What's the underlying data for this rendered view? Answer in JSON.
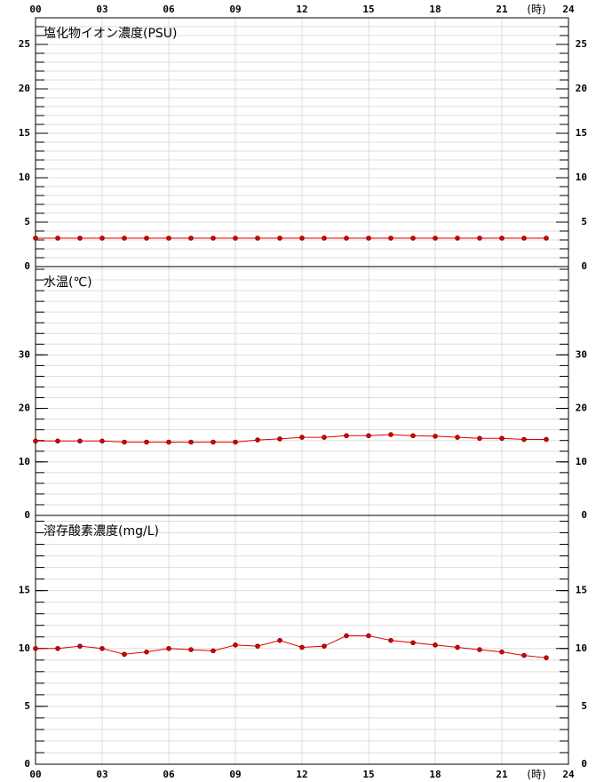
{
  "x_axis": {
    "xlim": [
      0,
      24
    ],
    "unit_label": "(時)",
    "xticks": [
      {
        "value": 0,
        "label": "00"
      },
      {
        "value": 3,
        "label": "03"
      },
      {
        "value": 6,
        "label": "06"
      },
      {
        "value": 9,
        "label": "09"
      },
      12,
      15,
      18,
      21,
      24
    ]
  },
  "chart_data": [
    {
      "type": "line",
      "title": "塩化物イオン濃度(PSU)",
      "color": "#e00000",
      "x": [
        0,
        1,
        2,
        3,
        4,
        5,
        6,
        7,
        8,
        9,
        10,
        11,
        12,
        13,
        14,
        15,
        16,
        17,
        18,
        19,
        20,
        21,
        22,
        23
      ],
      "values": [
        3.2,
        3.2,
        3.2,
        3.2,
        3.2,
        3.2,
        3.2,
        3.2,
        3.2,
        3.2,
        3.2,
        3.2,
        3.2,
        3.2,
        3.2,
        3.2,
        3.2,
        3.2,
        3.2,
        3.2,
        3.2,
        3.2,
        3.2,
        3.2
      ],
      "ylim": [
        0,
        28
      ],
      "yticks": [
        0,
        5,
        10,
        15,
        20,
        25
      ],
      "minor_grid_step": 1,
      "grid": true
    },
    {
      "type": "line",
      "title": "水温(℃)",
      "color": "#e00000",
      "x": [
        0,
        1,
        2,
        3,
        4,
        5,
        6,
        7,
        8,
        9,
        10,
        11,
        12,
        13,
        14,
        15,
        16,
        17,
        18,
        19,
        20,
        21,
        22,
        23
      ],
      "values": [
        13.9,
        13.9,
        13.9,
        13.9,
        13.7,
        13.7,
        13.7,
        13.7,
        13.7,
        13.7,
        14.1,
        14.3,
        14.6,
        14.6,
        14.9,
        14.9,
        15.1,
        14.9,
        14.8,
        14.6,
        14.4,
        14.4,
        14.2,
        14.2
      ],
      "ylim": [
        0,
        46.5
      ],
      "yticks": [
        0,
        10,
        20,
        30
      ],
      "minor_grid_step": 2,
      "grid": true
    },
    {
      "type": "line",
      "title": "溶存酸素濃度(mg/L)",
      "color": "#e00000",
      "x": [
        0,
        1,
        2,
        3,
        4,
        5,
        6,
        7,
        8,
        9,
        10,
        11,
        12,
        13,
        14,
        15,
        16,
        17,
        18,
        19,
        20,
        21,
        22,
        23
      ],
      "values": [
        10.0,
        10.0,
        10.2,
        10.0,
        9.5,
        9.7,
        10.0,
        9.9,
        9.8,
        10.3,
        10.2,
        10.7,
        10.1,
        10.2,
        11.1,
        11.1,
        10.7,
        10.5,
        10.3,
        10.1,
        9.9,
        9.7,
        9.4,
        9.2
      ],
      "ylim": [
        0,
        21.5
      ],
      "yticks": [
        0,
        5,
        10,
        15
      ],
      "minor_grid_step": 1,
      "grid": true
    }
  ]
}
